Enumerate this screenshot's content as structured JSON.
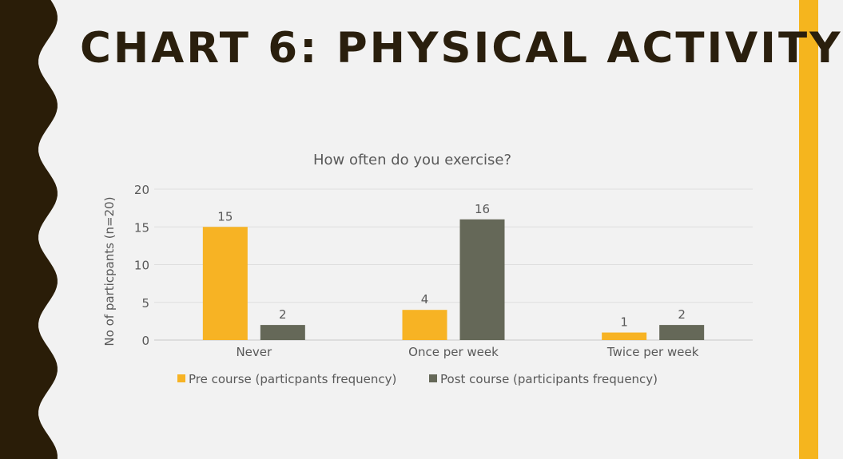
{
  "slide": {
    "title": "Chart 6: Physical Activity",
    "theme_colors": {
      "dark": "#2a1d08",
      "accent": "#f5b51e",
      "background": "#f2f2f2"
    }
  },
  "chart_data": {
    "type": "bar",
    "title": "How often do you exercise?",
    "xlabel": "",
    "ylabel": "No of particpants (n=20)",
    "categories": [
      "Never",
      "Once per week",
      "Twice per week"
    ],
    "series": [
      {
        "name": "Pre course (particpants frequency)",
        "values": [
          15,
          4,
          1
        ],
        "color": "#f7b324"
      },
      {
        "name": "Post course (participants frequency)",
        "values": [
          2,
          16,
          2
        ],
        "color": "#656858"
      }
    ],
    "ylim": [
      0,
      20
    ],
    "yticks": [
      0,
      5,
      10,
      15,
      20
    ],
    "grid": true,
    "legend": "bottom",
    "data_labels": true
  }
}
